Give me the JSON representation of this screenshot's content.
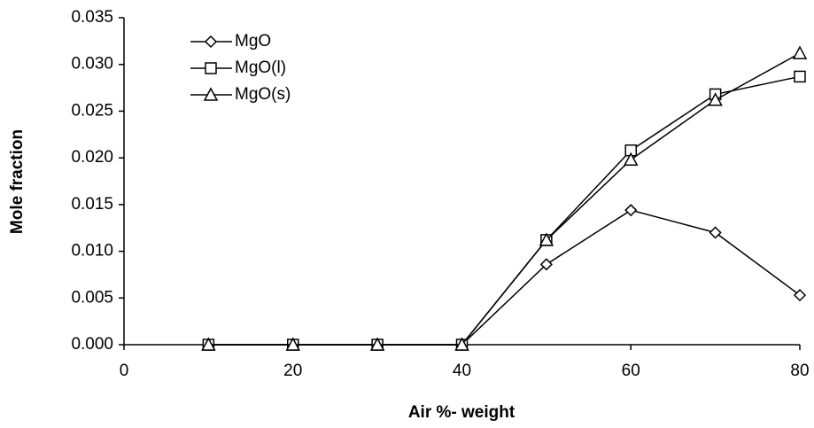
{
  "chart_data": {
    "type": "line",
    "x_label": "Air %- weight",
    "y_label": "Mole fraction",
    "xlim": [
      0,
      80
    ],
    "xticks": [
      0,
      20,
      40,
      60,
      80
    ],
    "ylim": [
      0,
      0.035
    ],
    "yticks": [
      {
        "value": 0,
        "label": "0.000"
      },
      0.005,
      {
        "value": 0.01,
        "label": "0.010"
      },
      0.015,
      {
        "value": 0.02,
        "label": "0.020"
      },
      0.025,
      {
        "value": 0.03,
        "label": "0.030"
      },
      0.035
    ],
    "legend": "top-left",
    "x": [
      10,
      20,
      30,
      40,
      50,
      60,
      70,
      80
    ],
    "series": [
      {
        "name": "MgO",
        "color": "#000000",
        "marker": "diamond",
        "values": [
          0,
          0,
          0,
          0,
          0.0086,
          0.0144,
          0.012,
          0.0053
        ]
      },
      {
        "name": "MgO(l)",
        "color": "#000000",
        "marker": "square",
        "values": [
          0,
          0,
          0,
          0,
          0.0112,
          0.0208,
          0.0268,
          0.0287
        ]
      },
      {
        "name": "MgO(s)",
        "color": "#000000",
        "marker": "triangle",
        "values": [
          0,
          0,
          0,
          0,
          0.0112,
          0.0198,
          0.0262,
          0.0312
        ]
      }
    ]
  }
}
